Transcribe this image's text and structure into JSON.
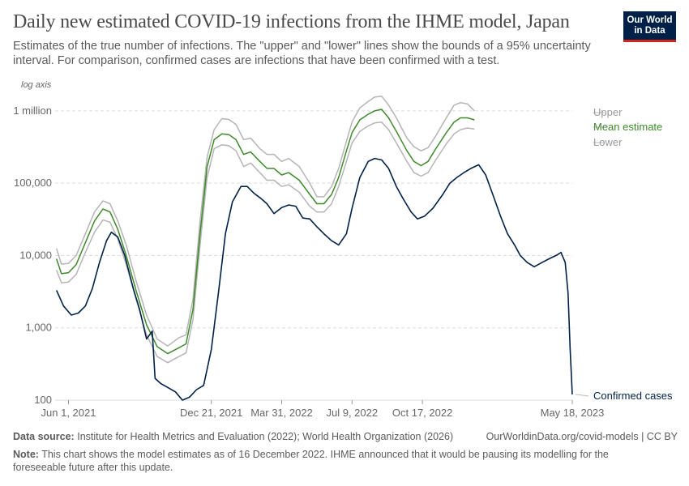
{
  "header": {
    "title": "Daily new estimated COVID-19 infections from the IHME model, Japan",
    "subtitle": "Estimates of the true number of infections. The \"upper\" and \"lower\" lines show the bounds of a 95% uncertainty interval. For comparison, confirmed cases are infections that have been confirmed with a test.",
    "logo_line1": "Our World",
    "logo_line2": "in Data"
  },
  "footer": {
    "source_label": "Data source:",
    "source_text": "Institute for Health Metrics and Evaluation (2022); World Health Organization (2026)",
    "url_text": "OurWorldinData.org/covid-models | CC BY",
    "note_label": "Note:",
    "note_text": "This chart shows the model estimates as of 16 December 2022. IHME announced that it would be pausing its modelling for the foreseeable future after this update."
  },
  "colors": {
    "confirmed": "#002147",
    "mean": "#3e8a2b",
    "bounds": "#b5b5b5",
    "grid": "#dddddd",
    "logo_bg": "#002147",
    "logo_accent": "#ce261e"
  },
  "chart_data": {
    "type": "line",
    "log_scale": true,
    "axis_note": "log axis",
    "ylim": [
      100,
      2000000
    ],
    "y_ticks": [
      {
        "value": 100,
        "label": "100"
      },
      {
        "value": 1000,
        "label": "1,000"
      },
      {
        "value": 10000,
        "label": "10,000"
      },
      {
        "value": 100000,
        "label": "100,000"
      },
      {
        "value": 1000000,
        "label": "1 million"
      }
    ],
    "xlim": [
      "2021-05-13",
      "2023-05-18"
    ],
    "x_ticks": [
      {
        "date": "2021-06-01",
        "label": "Jun 1, 2021"
      },
      {
        "date": "2021-12-21",
        "label": "Dec 21, 2021"
      },
      {
        "date": "2022-03-31",
        "label": "Mar 31, 2022"
      },
      {
        "date": "2022-07-09",
        "label": "Jul 9, 2022"
      },
      {
        "date": "2022-10-17",
        "label": "Oct 17, 2022"
      },
      {
        "date": "2023-05-18",
        "label": "May 18, 2023"
      }
    ],
    "grid": true,
    "legend": "right, labels at line ends",
    "series": [
      {
        "name": "Upper",
        "color": "#b5b5b5",
        "points": [
          [
            "2021-05-15",
            12500
          ],
          [
            "2021-05-22",
            7600
          ],
          [
            "2021-06-01",
            7800
          ],
          [
            "2021-06-12",
            10000
          ],
          [
            "2021-06-25",
            20000
          ],
          [
            "2021-07-08",
            40000
          ],
          [
            "2021-07-20",
            57000
          ],
          [
            "2021-07-30",
            52000
          ],
          [
            "2021-08-10",
            30000
          ],
          [
            "2021-08-22",
            14000
          ],
          [
            "2021-09-05",
            4500
          ],
          [
            "2021-09-20",
            1500
          ],
          [
            "2021-10-05",
            700
          ],
          [
            "2021-10-20",
            560
          ],
          [
            "2021-11-05",
            730
          ],
          [
            "2021-11-15",
            800
          ],
          [
            "2021-11-25",
            2500
          ],
          [
            "2021-12-05",
            30000
          ],
          [
            "2021-12-15",
            230000
          ],
          [
            "2021-12-25",
            550000
          ],
          [
            "2022-01-05",
            780000
          ],
          [
            "2022-01-15",
            760000
          ],
          [
            "2022-01-25",
            650000
          ],
          [
            "2022-02-05",
            400000
          ],
          [
            "2022-02-15",
            420000
          ],
          [
            "2022-02-28",
            300000
          ],
          [
            "2022-03-10",
            250000
          ],
          [
            "2022-03-20",
            250000
          ],
          [
            "2022-03-31",
            200000
          ],
          [
            "2022-04-10",
            220000
          ],
          [
            "2022-04-25",
            170000
          ],
          [
            "2022-05-10",
            100000
          ],
          [
            "2022-05-20",
            65000
          ],
          [
            "2022-05-30",
            65000
          ],
          [
            "2022-06-10",
            90000
          ],
          [
            "2022-06-20",
            160000
          ],
          [
            "2022-07-01",
            380000
          ],
          [
            "2022-07-09",
            700000
          ],
          [
            "2022-07-20",
            1100000
          ],
          [
            "2022-08-01",
            1350000
          ],
          [
            "2022-08-10",
            1550000
          ],
          [
            "2022-08-20",
            1600000
          ],
          [
            "2022-08-30",
            1200000
          ],
          [
            "2022-09-10",
            800000
          ],
          [
            "2022-09-25",
            420000
          ],
          [
            "2022-10-05",
            320000
          ],
          [
            "2022-10-15",
            280000
          ],
          [
            "2022-10-25",
            310000
          ],
          [
            "2022-11-05",
            450000
          ],
          [
            "2022-11-20",
            800000
          ],
          [
            "2022-12-01",
            1200000
          ],
          [
            "2022-12-10",
            1300000
          ],
          [
            "2022-12-20",
            1250000
          ],
          [
            "2022-12-30",
            1000000
          ]
        ]
      },
      {
        "name": "Mean estimate",
        "color": "#3e8a2b",
        "points": [
          [
            "2021-05-15",
            9000
          ],
          [
            "2021-05-22",
            5600
          ],
          [
            "2021-06-01",
            5800
          ],
          [
            "2021-06-12",
            7500
          ],
          [
            "2021-06-25",
            15000
          ],
          [
            "2021-07-08",
            30000
          ],
          [
            "2021-07-20",
            44000
          ],
          [
            "2021-07-30",
            40000
          ],
          [
            "2021-08-10",
            23000
          ],
          [
            "2021-08-22",
            10000
          ],
          [
            "2021-09-05",
            3300
          ],
          [
            "2021-09-20",
            1100
          ],
          [
            "2021-10-05",
            550
          ],
          [
            "2021-10-20",
            440
          ],
          [
            "2021-11-05",
            530
          ],
          [
            "2021-11-15",
            600
          ],
          [
            "2021-11-25",
            1800
          ],
          [
            "2021-12-05",
            20000
          ],
          [
            "2021-12-15",
            170000
          ],
          [
            "2021-12-25",
            400000
          ],
          [
            "2022-01-05",
            480000
          ],
          [
            "2022-01-15",
            470000
          ],
          [
            "2022-01-25",
            400000
          ],
          [
            "2022-02-05",
            250000
          ],
          [
            "2022-02-15",
            270000
          ],
          [
            "2022-02-28",
            200000
          ],
          [
            "2022-03-10",
            160000
          ],
          [
            "2022-03-20",
            160000
          ],
          [
            "2022-03-31",
            130000
          ],
          [
            "2022-04-10",
            140000
          ],
          [
            "2022-04-25",
            110000
          ],
          [
            "2022-05-10",
            70000
          ],
          [
            "2022-05-20",
            52000
          ],
          [
            "2022-05-30",
            52000
          ],
          [
            "2022-06-10",
            70000
          ],
          [
            "2022-06-20",
            120000
          ],
          [
            "2022-07-01",
            280000
          ],
          [
            "2022-07-09",
            500000
          ],
          [
            "2022-07-20",
            750000
          ],
          [
            "2022-08-01",
            900000
          ],
          [
            "2022-08-10",
            1000000
          ],
          [
            "2022-08-20",
            1050000
          ],
          [
            "2022-08-30",
            800000
          ],
          [
            "2022-09-10",
            520000
          ],
          [
            "2022-09-25",
            280000
          ],
          [
            "2022-10-05",
            200000
          ],
          [
            "2022-10-15",
            175000
          ],
          [
            "2022-10-25",
            200000
          ],
          [
            "2022-11-05",
            300000
          ],
          [
            "2022-11-20",
            500000
          ],
          [
            "2022-12-01",
            700000
          ],
          [
            "2022-12-10",
            800000
          ],
          [
            "2022-12-20",
            800000
          ],
          [
            "2022-12-30",
            750000
          ]
        ]
      },
      {
        "name": "Lower",
        "color": "#b5b5b5",
        "points": [
          [
            "2021-05-15",
            6300
          ],
          [
            "2021-05-22",
            4200
          ],
          [
            "2021-06-01",
            4300
          ],
          [
            "2021-06-12",
            5500
          ],
          [
            "2021-06-25",
            11000
          ],
          [
            "2021-07-08",
            21000
          ],
          [
            "2021-07-20",
            31000
          ],
          [
            "2021-07-30",
            29000
          ],
          [
            "2021-08-10",
            17000
          ],
          [
            "2021-08-22",
            7500
          ],
          [
            "2021-09-05",
            2500
          ],
          [
            "2021-09-20",
            800
          ],
          [
            "2021-10-05",
            400
          ],
          [
            "2021-10-20",
            330
          ],
          [
            "2021-11-05",
            400
          ],
          [
            "2021-11-15",
            450
          ],
          [
            "2021-11-25",
            1300
          ],
          [
            "2021-12-05",
            14000
          ],
          [
            "2021-12-15",
            120000
          ],
          [
            "2021-12-25",
            300000
          ],
          [
            "2022-01-05",
            340000
          ],
          [
            "2022-01-15",
            330000
          ],
          [
            "2022-01-25",
            280000
          ],
          [
            "2022-02-05",
            170000
          ],
          [
            "2022-02-15",
            190000
          ],
          [
            "2022-02-28",
            140000
          ],
          [
            "2022-03-10",
            110000
          ],
          [
            "2022-03-20",
            110000
          ],
          [
            "2022-03-31",
            90000
          ],
          [
            "2022-04-10",
            95000
          ],
          [
            "2022-04-25",
            75000
          ],
          [
            "2022-05-10",
            48000
          ],
          [
            "2022-05-20",
            40000
          ],
          [
            "2022-05-30",
            40000
          ],
          [
            "2022-06-10",
            52000
          ],
          [
            "2022-06-20",
            90000
          ],
          [
            "2022-07-01",
            200000
          ],
          [
            "2022-07-09",
            360000
          ],
          [
            "2022-07-20",
            520000
          ],
          [
            "2022-08-01",
            620000
          ],
          [
            "2022-08-10",
            680000
          ],
          [
            "2022-08-20",
            700000
          ],
          [
            "2022-08-30",
            550000
          ],
          [
            "2022-09-10",
            360000
          ],
          [
            "2022-09-25",
            200000
          ],
          [
            "2022-10-05",
            140000
          ],
          [
            "2022-10-15",
            125000
          ],
          [
            "2022-10-25",
            140000
          ],
          [
            "2022-11-05",
            210000
          ],
          [
            "2022-11-20",
            350000
          ],
          [
            "2022-12-01",
            480000
          ],
          [
            "2022-12-10",
            550000
          ],
          [
            "2022-12-20",
            580000
          ],
          [
            "2022-12-30",
            560000
          ]
        ]
      },
      {
        "name": "Confirmed cases",
        "color": "#002147",
        "points": [
          [
            "2021-05-15",
            3300
          ],
          [
            "2021-05-25",
            2000
          ],
          [
            "2021-06-05",
            1500
          ],
          [
            "2021-06-15",
            1600
          ],
          [
            "2021-06-25",
            2000
          ],
          [
            "2021-07-05",
            3500
          ],
          [
            "2021-07-15",
            8000
          ],
          [
            "2021-07-25",
            16000
          ],
          [
            "2021-08-01",
            21000
          ],
          [
            "2021-08-10",
            18000
          ],
          [
            "2021-08-20",
            10000
          ],
          [
            "2021-09-01",
            3500
          ],
          [
            "2021-09-10",
            1800
          ],
          [
            "2021-09-20",
            700
          ],
          [
            "2021-09-28",
            900
          ],
          [
            "2021-10-02",
            200
          ],
          [
            "2021-10-10",
            170
          ],
          [
            "2021-10-20",
            150
          ],
          [
            "2021-10-31",
            130
          ],
          [
            "2021-11-10",
            100
          ],
          [
            "2021-11-20",
            110
          ],
          [
            "2021-11-30",
            140
          ],
          [
            "2021-12-10",
            160
          ],
          [
            "2021-12-21",
            500
          ],
          [
            "2021-12-31",
            3000
          ],
          [
            "2022-01-10",
            20000
          ],
          [
            "2022-01-20",
            55000
          ],
          [
            "2022-02-01",
            90000
          ],
          [
            "2022-02-10",
            90000
          ],
          [
            "2022-02-20",
            72000
          ],
          [
            "2022-03-01",
            62000
          ],
          [
            "2022-03-10",
            52000
          ],
          [
            "2022-03-20",
            38000
          ],
          [
            "2022-03-31",
            46000
          ],
          [
            "2022-04-10",
            50000
          ],
          [
            "2022-04-20",
            48000
          ],
          [
            "2022-04-30",
            33000
          ],
          [
            "2022-05-10",
            32000
          ],
          [
            "2022-05-20",
            25000
          ],
          [
            "2022-05-30",
            20000
          ],
          [
            "2022-06-10",
            16000
          ],
          [
            "2022-06-20",
            14000
          ],
          [
            "2022-07-01",
            20000
          ],
          [
            "2022-07-09",
            45000
          ],
          [
            "2022-07-20",
            120000
          ],
          [
            "2022-08-01",
            200000
          ],
          [
            "2022-08-10",
            220000
          ],
          [
            "2022-08-20",
            210000
          ],
          [
            "2022-08-30",
            160000
          ],
          [
            "2022-09-10",
            90000
          ],
          [
            "2022-09-20",
            60000
          ],
          [
            "2022-10-01",
            40000
          ],
          [
            "2022-10-10",
            32000
          ],
          [
            "2022-10-20",
            35000
          ],
          [
            "2022-11-01",
            45000
          ],
          [
            "2022-11-15",
            70000
          ],
          [
            "2022-11-25",
            100000
          ],
          [
            "2022-12-05",
            120000
          ],
          [
            "2022-12-15",
            140000
          ],
          [
            "2022-12-25",
            160000
          ],
          [
            "2023-01-05",
            180000
          ],
          [
            "2023-01-15",
            130000
          ],
          [
            "2023-01-25",
            70000
          ],
          [
            "2023-02-05",
            35000
          ],
          [
            "2023-02-15",
            20000
          ],
          [
            "2023-02-25",
            14000
          ],
          [
            "2023-03-05",
            10000
          ],
          [
            "2023-03-15",
            8000
          ],
          [
            "2023-03-25",
            7000
          ],
          [
            "2023-04-05",
            8000
          ],
          [
            "2023-04-15",
            9000
          ],
          [
            "2023-04-25",
            10000
          ],
          [
            "2023-05-02",
            11000
          ],
          [
            "2023-05-08",
            8000
          ],
          [
            "2023-05-12",
            3000
          ],
          [
            "2023-05-15",
            500
          ],
          [
            "2023-05-18",
            120
          ]
        ]
      }
    ]
  }
}
